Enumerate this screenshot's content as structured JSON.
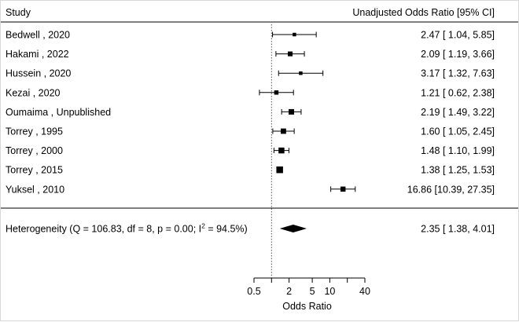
{
  "chart_data": {
    "type": "forest",
    "header": {
      "study_label": "Study",
      "estimate_label": "Unadjusted Odds Ratio [95% CI]"
    },
    "studies": [
      {
        "name": "Bedwell , 2020",
        "or": 2.47,
        "lower": 1.04,
        "upper": 5.85,
        "label": "2.47 [ 1.04,  5.85]"
      },
      {
        "name": "Hakami , 2022",
        "or": 2.09,
        "lower": 1.19,
        "upper": 3.66,
        "label": "2.09 [ 1.19,  3.66]"
      },
      {
        "name": "Hussein , 2020",
        "or": 3.17,
        "lower": 1.32,
        "upper": 7.63,
        "label": "3.17 [ 1.32,  7.63]"
      },
      {
        "name": "Kezai , 2020",
        "or": 1.21,
        "lower": 0.62,
        "upper": 2.38,
        "label": "1.21 [ 0.62,  2.38]"
      },
      {
        "name": "Oumaima , Unpublished",
        "or": 2.19,
        "lower": 1.49,
        "upper": 3.22,
        "label": "2.19 [ 1.49,  3.22]"
      },
      {
        "name": "Torrey , 1995",
        "or": 1.6,
        "lower": 1.05,
        "upper": 2.45,
        "label": "1.60 [ 1.05,  2.45]"
      },
      {
        "name": "Torrey , 2000",
        "or": 1.48,
        "lower": 1.1,
        "upper": 1.99,
        "label": "1.48 [ 1.10,  1.99]"
      },
      {
        "name": "Torrey , 2015",
        "or": 1.38,
        "lower": 1.25,
        "upper": 1.53,
        "label": "1.38 [ 1.25,  1.53]"
      },
      {
        "name": "Yuksel , 2010",
        "or": 16.86,
        "lower": 10.39,
        "upper": 27.35,
        "label": "16.86 [10.39, 27.35]"
      }
    ],
    "summary": {
      "label_prefix": "Heterogeneity (Q = 106.83, df = 8, p = 0.00; I",
      "label_sup": "2",
      "label_suffix": " = 94.5%)",
      "or": 2.35,
      "lower": 1.38,
      "upper": 4.01,
      "label": "2.35 [ 1.38,  4.01]"
    },
    "x_axis": {
      "scale": "log",
      "reference_line": 1,
      "ticks": [
        0.5,
        2,
        5,
        10,
        40
      ],
      "tick_labels": [
        "0.5",
        "2",
        "5",
        "10",
        "40"
      ],
      "minor_ticks": [
        1,
        20
      ],
      "xlim": [
        0.5,
        40
      ],
      "xlabel": "Odds Ratio"
    },
    "colors": {
      "ink": "#000000",
      "guide": "#555555"
    }
  }
}
